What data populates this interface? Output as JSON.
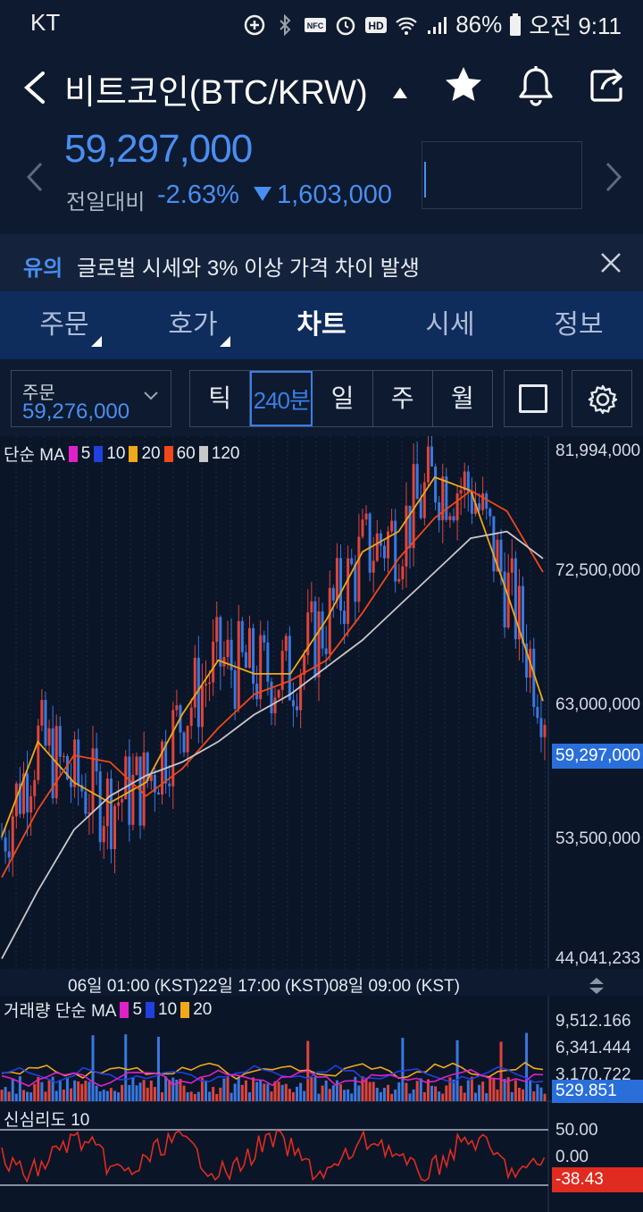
{
  "status_bar": {
    "carrier": "KT",
    "battery": "86%",
    "time": "오전 9:11",
    "icons": [
      "data-saver-icon",
      "bluetooth-icon",
      "nfc-icon",
      "alarm-icon",
      "hd-icon",
      "wifi-icon",
      "signal-icon",
      "battery-icon"
    ]
  },
  "header": {
    "title": "비트코인(BTC/KRW)",
    "price": "59,297,000",
    "prev_label": "전일대비",
    "change_pct": "-2.63%",
    "change_amount": "1,603,000",
    "price_color": "#4a8ef2"
  },
  "notice": {
    "tag": "유의",
    "text": "글로벌 시세와 3% 이상 가격 차이 발생"
  },
  "tabs": [
    {
      "label": "주문",
      "active": false
    },
    {
      "label": "호가",
      "active": false
    },
    {
      "label": "차트",
      "active": true
    },
    {
      "label": "시세",
      "active": false
    },
    {
      "label": "정보",
      "active": false
    }
  ],
  "toolbar": {
    "order_label": "주문",
    "order_value": "59,276,000",
    "periods": [
      "틱",
      "240분",
      "일",
      "주",
      "월"
    ],
    "active_period": "240분"
  },
  "chart": {
    "ma_label": "단순 MA",
    "ma_periods": [
      "5",
      "10",
      "20",
      "60",
      "120"
    ],
    "ma_colors": [
      "#e020c8",
      "#2040e0",
      "#f0a818",
      "#f04818",
      "#c8c8c8"
    ],
    "price_ticks": [
      "81,994,000",
      "72,500,000",
      "63,000,000",
      "53,500,000",
      "44,041,233"
    ],
    "current_price_label": "59,297,000",
    "time_axis": "06일 01:00 (KST)22일 17:00  (KST)08일 09:00 (KST)",
    "volume_label": "거래량 단순 MA",
    "volume_ma_periods": [
      "5",
      "10",
      "20"
    ],
    "volume_ticks": [
      "9,512.166",
      "6,341.444",
      "3,170.722"
    ],
    "volume_current": "529.851",
    "psy_label": "신심리도 10",
    "psy_ticks": [
      "50.00",
      "0.00"
    ],
    "psy_current": "-38.43"
  },
  "chart_data": {
    "type": "line",
    "title": "",
    "ylim": [
      44041233,
      81994000
    ],
    "series": [
      {
        "name": "MA 20",
        "values": [
          53000000,
          60000000,
          57000000,
          55500000,
          57000000,
          62000000,
          66000000,
          65000000,
          65000000,
          69000000,
          74000000,
          75500000,
          79500000,
          78500000,
          71000000,
          63000000
        ]
      },
      {
        "name": "MA 60",
        "values": [
          50000000,
          55000000,
          59000000,
          58500000,
          56000000,
          58000000,
          61000000,
          63500000,
          64500000,
          66000000,
          69500000,
          73500000,
          76500000,
          78500000,
          77000000,
          72500000
        ]
      },
      {
        "name": "MA 120",
        "values": [
          44000000,
          49000000,
          53500000,
          56000000,
          57500000,
          58500000,
          60000000,
          62000000,
          63500000,
          65500000,
          67500000,
          70000000,
          72500000,
          75000000,
          75500000,
          73500000
        ]
      }
    ]
  }
}
